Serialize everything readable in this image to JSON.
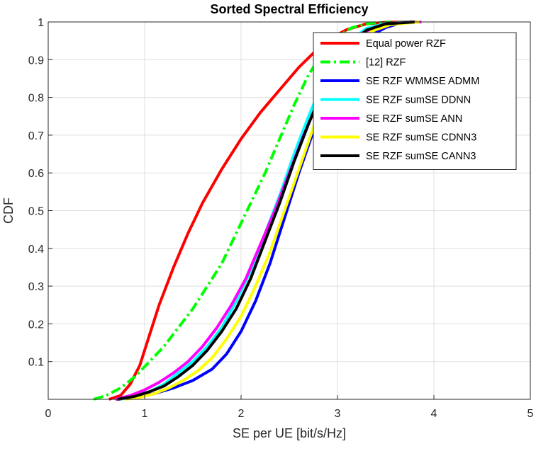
{
  "chart_data": {
    "type": "line",
    "title": "Sorted Spectral Efficiency",
    "xlabel": "SE per UE [bit/s/Hz]",
    "ylabel": "CDF",
    "xlim": [
      0,
      5
    ],
    "ylim": [
      0,
      1
    ],
    "xticks": [
      "0",
      "1",
      "2",
      "3",
      "4",
      "5"
    ],
    "yticks": [
      "0.1",
      "0.2",
      "0.3",
      "0.4",
      "0.5",
      "0.6",
      "0.7",
      "0.8",
      "0.9",
      "1"
    ],
    "grid": true,
    "legend_position": "top-right",
    "series": [
      {
        "name": "Equal power RZF",
        "color": "#ff0000",
        "dash": "solid",
        "x": [
          0.63,
          0.75,
          0.85,
          0.95,
          1.05,
          1.15,
          1.3,
          1.45,
          1.6,
          1.8,
          2.0,
          2.2,
          2.4,
          2.6,
          2.8,
          2.95,
          3.1,
          3.3,
          3.5,
          3.7,
          3.83
        ],
        "y": [
          0.0,
          0.01,
          0.04,
          0.09,
          0.17,
          0.25,
          0.35,
          0.44,
          0.52,
          0.61,
          0.69,
          0.76,
          0.82,
          0.88,
          0.93,
          0.96,
          0.98,
          0.995,
          0.999,
          1.0,
          1.0
        ]
      },
      {
        "name": "[12] RZF",
        "color": "#00ff00",
        "dash": "dashdot",
        "x": [
          0.47,
          0.6,
          0.75,
          0.9,
          1.05,
          1.2,
          1.35,
          1.5,
          1.65,
          1.8,
          1.95,
          2.1,
          2.25,
          2.4,
          2.55,
          2.7,
          2.85,
          3.0,
          3.15,
          3.35,
          3.55
        ],
        "y": [
          0.0,
          0.01,
          0.03,
          0.06,
          0.1,
          0.14,
          0.19,
          0.24,
          0.3,
          0.36,
          0.44,
          0.52,
          0.6,
          0.69,
          0.78,
          0.86,
          0.92,
          0.96,
          0.985,
          0.997,
          1.0
        ]
      },
      {
        "name": "SE RZF WMMSE ADMM",
        "color": "#0000ff",
        "dash": "solid",
        "x": [
          0.7,
          0.9,
          1.1,
          1.3,
          1.5,
          1.7,
          1.85,
          2.0,
          2.15,
          2.3,
          2.45,
          2.6,
          2.75,
          2.9,
          3.05,
          3.2,
          3.35,
          3.5,
          3.65,
          3.8
        ],
        "y": [
          0.0,
          0.005,
          0.015,
          0.03,
          0.05,
          0.08,
          0.12,
          0.18,
          0.26,
          0.36,
          0.48,
          0.6,
          0.71,
          0.8,
          0.88,
          0.93,
          0.965,
          0.985,
          0.997,
          1.0
        ]
      },
      {
        "name": "SE RZF sumSE DDNN",
        "color": "#00ffff",
        "dash": "solid",
        "x": [
          0.75,
          0.9,
          1.05,
          1.2,
          1.35,
          1.5,
          1.65,
          1.8,
          1.95,
          2.1,
          2.25,
          2.4,
          2.55,
          2.7,
          2.85,
          3.0,
          3.15,
          3.3,
          3.5,
          3.75
        ],
        "y": [
          0.0,
          0.01,
          0.02,
          0.04,
          0.07,
          0.1,
          0.14,
          0.19,
          0.26,
          0.34,
          0.44,
          0.54,
          0.65,
          0.75,
          0.84,
          0.91,
          0.955,
          0.983,
          0.996,
          1.0
        ]
      },
      {
        "name": "SE RZF sumSE ANN",
        "color": "#ff00ff",
        "dash": "solid",
        "x": [
          0.7,
          0.85,
          1.0,
          1.15,
          1.3,
          1.45,
          1.6,
          1.75,
          1.9,
          2.05,
          2.2,
          2.35,
          2.5,
          2.65,
          2.8,
          2.95,
          3.1,
          3.25,
          3.45,
          3.7,
          3.87
        ],
        "y": [
          0.0,
          0.01,
          0.025,
          0.045,
          0.07,
          0.1,
          0.14,
          0.19,
          0.25,
          0.32,
          0.41,
          0.5,
          0.6,
          0.7,
          0.79,
          0.87,
          0.93,
          0.97,
          0.99,
          0.998,
          1.0
        ]
      },
      {
        "name": "SE RZF sumSE CDNN3",
        "color": "#ffff00",
        "dash": "solid",
        "x": [
          0.8,
          0.95,
          1.1,
          1.25,
          1.4,
          1.55,
          1.7,
          1.85,
          2.0,
          2.15,
          2.3,
          2.45,
          2.6,
          2.75,
          2.9,
          3.05,
          3.2,
          3.35,
          3.55,
          3.85
        ],
        "y": [
          0.0,
          0.005,
          0.015,
          0.03,
          0.05,
          0.075,
          0.11,
          0.16,
          0.22,
          0.3,
          0.39,
          0.5,
          0.61,
          0.72,
          0.81,
          0.89,
          0.94,
          0.975,
          0.993,
          1.0
        ]
      },
      {
        "name": "SE RZF sumSE CANN3",
        "color": "#000000",
        "dash": "solid",
        "x": [
          0.72,
          0.9,
          1.05,
          1.2,
          1.35,
          1.5,
          1.65,
          1.8,
          1.95,
          2.1,
          2.25,
          2.4,
          2.55,
          2.7,
          2.85,
          3.0,
          3.15,
          3.3,
          3.5,
          3.8
        ],
        "y": [
          0.0,
          0.008,
          0.02,
          0.035,
          0.06,
          0.09,
          0.13,
          0.18,
          0.24,
          0.32,
          0.42,
          0.52,
          0.63,
          0.73,
          0.82,
          0.89,
          0.945,
          0.978,
          0.995,
          1.0
        ]
      }
    ]
  }
}
